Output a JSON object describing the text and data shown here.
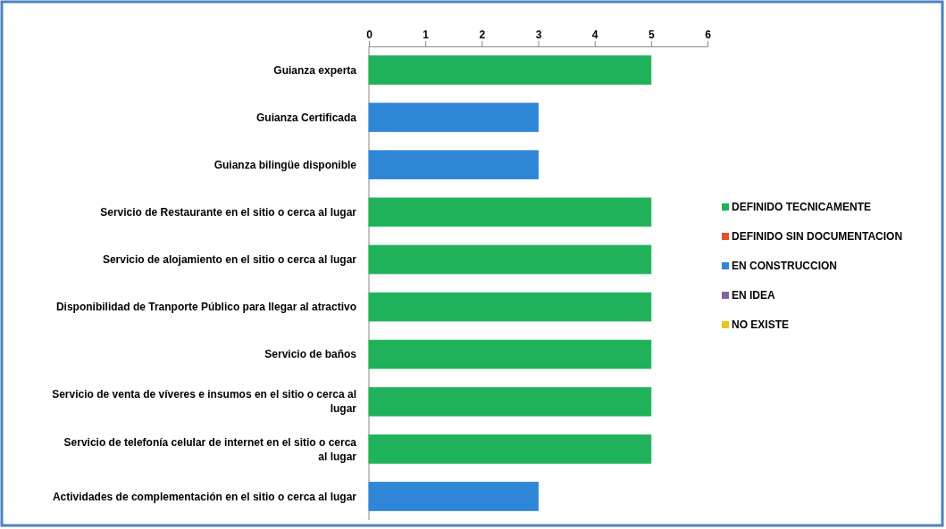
{
  "chart_data": {
    "type": "bar",
    "orientation": "horizontal",
    "categories": [
      "Guianza experta",
      "Guianza Certificada",
      "Guianza bilingüe disponible",
      "Servicio de Restaurante en el sitio o cerca al lugar",
      "Servicio de alojamiento en el sitio o cerca al lugar",
      "Disponibilidad de Tranporte Público para llegar al atractivo",
      "Servicio de baños",
      "Servicio de venta de víveres e insumos en el sitio o cerca al lugar",
      "Servicio de telefonía celular de internet en el sitio o cerca al lugar",
      "Actividades de complementación en el sitio o cerca al lugar"
    ],
    "series": [
      {
        "name": "DEFINIDO TECNICAMENTE",
        "color": "#1fb25a",
        "values": [
          5,
          null,
          null,
          5,
          5,
          5,
          5,
          5,
          5,
          null
        ]
      },
      {
        "name": "DEFINIDO SIN DOCUMENTACION",
        "color": "#e8502a",
        "values": [
          null,
          null,
          null,
          null,
          null,
          null,
          null,
          null,
          null,
          null
        ]
      },
      {
        "name": "EN CONSTRUCCION",
        "color": "#2f86d6",
        "values": [
          null,
          3,
          3,
          null,
          null,
          null,
          null,
          null,
          null,
          3
        ]
      },
      {
        "name": "EN IDEA",
        "color": "#8064a2",
        "values": [
          null,
          null,
          null,
          null,
          null,
          null,
          null,
          null,
          null,
          null
        ]
      },
      {
        "name": "NO EXISTE",
        "color": "#e6c619",
        "values": [
          null,
          null,
          null,
          null,
          null,
          null,
          null,
          null,
          null,
          null
        ]
      }
    ],
    "xlim": [
      0,
      6
    ],
    "xticks": [
      0,
      1,
      2,
      3,
      4,
      5,
      6
    ],
    "grid": false,
    "legend": "right"
  }
}
